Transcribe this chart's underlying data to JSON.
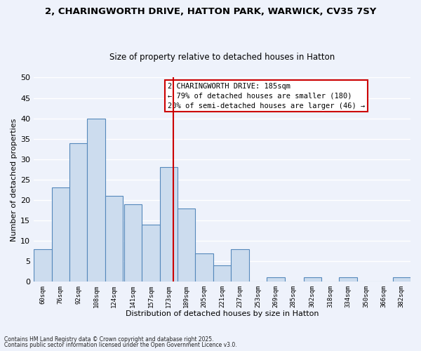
{
  "title_line1": "2, CHARINGWORTH DRIVE, HATTON PARK, WARWICK, CV35 7SY",
  "title_line2": "Size of property relative to detached houses in Hatton",
  "xlabel": "Distribution of detached houses by size in Hatton",
  "ylabel": "Number of detached properties",
  "bin_labels": [
    "60sqm",
    "76sqm",
    "92sqm",
    "108sqm",
    "124sqm",
    "141sqm",
    "157sqm",
    "173sqm",
    "189sqm",
    "205sqm",
    "221sqm",
    "237sqm",
    "253sqm",
    "269sqm",
    "285sqm",
    "302sqm",
    "318sqm",
    "334sqm",
    "350sqm",
    "366sqm",
    "382sqm"
  ],
  "bin_edges": [
    60,
    76,
    92,
    108,
    124,
    141,
    157,
    173,
    189,
    205,
    221,
    237,
    253,
    269,
    285,
    302,
    318,
    334,
    350,
    366,
    382
  ],
  "bin_width": 16,
  "counts": [
    8,
    23,
    34,
    40,
    21,
    19,
    14,
    28,
    18,
    7,
    4,
    8,
    0,
    1,
    0,
    1,
    0,
    1,
    0,
    0,
    1
  ],
  "bar_color": "#ccdcee",
  "bar_edge_color": "#5588bb",
  "vline_x": 185,
  "vline_color": "#cc0000",
  "ylim": [
    0,
    50
  ],
  "yticks": [
    0,
    5,
    10,
    15,
    20,
    25,
    30,
    35,
    40,
    45,
    50
  ],
  "annotation_title": "2 CHARINGWORTH DRIVE: 185sqm",
  "annotation_line1": "← 79% of detached houses are smaller (180)",
  "annotation_line2": "20% of semi-detached houses are larger (46) →",
  "annotation_box_color": "#ffffff",
  "annotation_box_edge": "#cc0000",
  "footnote1": "Contains HM Land Registry data © Crown copyright and database right 2025.",
  "footnote2": "Contains public sector information licensed under the Open Government Licence v3.0.",
  "bg_color": "#eef2fb",
  "grid_color": "#ffffff",
  "title_fontsize": 9.5,
  "subtitle_fontsize": 8.5
}
